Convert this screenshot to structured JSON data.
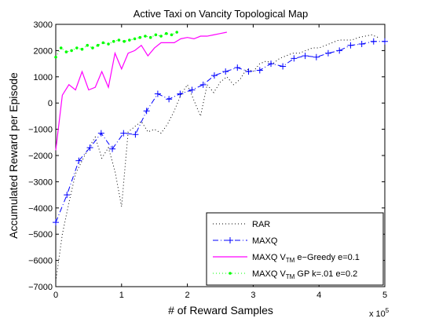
{
  "chart_data": {
    "type": "line",
    "title": "Active Taxi on Vancity Topological Map",
    "xlabel": "# of Reward Samples",
    "ylabel": "Accumulated Reward per Episode",
    "x_multiplier_label": "x 10",
    "x_multiplier_exponent": "5",
    "xlim": [
      0,
      500000
    ],
    "ylim": [
      -7000,
      3000
    ],
    "xticks": [
      0,
      100000,
      200000,
      300000,
      400000,
      500000
    ],
    "xtick_labels": [
      "0",
      "1",
      "2",
      "3",
      "4",
      "5"
    ],
    "yticks": [
      -7000,
      -6000,
      -5000,
      -4000,
      -3000,
      -2000,
      -1000,
      0,
      1000,
      2000,
      3000
    ],
    "ytick_labels": [
      "−7000",
      "−6000",
      "−5000",
      "−4000",
      "−3000",
      "−2000",
      "−1000",
      "0",
      "1000",
      "2000",
      "3000"
    ],
    "grid": false,
    "legend_position": "bottom-right",
    "series": [
      {
        "name": "RAR",
        "color": "#000000",
        "style": "dotted",
        "x": [
          0,
          10000,
          20000,
          30000,
          40000,
          50000,
          60000,
          70000,
          80000,
          90000,
          100000,
          110000,
          120000,
          130000,
          140000,
          150000,
          160000,
          170000,
          180000,
          190000,
          200000,
          210000,
          220000,
          230000,
          240000,
          250000,
          260000,
          270000,
          280000,
          290000,
          300000,
          310000,
          320000,
          330000,
          340000,
          350000,
          360000,
          370000,
          380000,
          390000,
          400000,
          410000,
          420000,
          430000,
          440000,
          450000,
          460000,
          470000,
          480000,
          490000
        ],
        "y": [
          -6800,
          -5000,
          -3800,
          -2700,
          -2200,
          -1700,
          -1300,
          -2100,
          -1700,
          -2600,
          -3950,
          -1100,
          -900,
          -700,
          -1100,
          -1000,
          -1150,
          -800,
          -300,
          300,
          700,
          100,
          -500,
          700,
          400,
          800,
          1000,
          700,
          900,
          1300,
          1200,
          1500,
          1600,
          1500,
          1700,
          1800,
          1900,
          1900,
          2000,
          2100,
          2100,
          2200,
          2300,
          2400,
          2400,
          2400,
          2500,
          2550,
          2600,
          2500
        ]
      },
      {
        "name": "MAXQ",
        "color": "#0000ff",
        "style": "dashdot",
        "marker": "plus",
        "x": [
          0,
          17000,
          35000,
          52000,
          69000,
          86000,
          103000,
          121000,
          138000,
          155000,
          172000,
          189000,
          207000,
          224000,
          241000,
          258000,
          276000,
          293000,
          310000,
          327000,
          345000,
          362000,
          379000,
          396000,
          414000,
          431000,
          448000,
          465000,
          483000,
          500000
        ],
        "y": [
          -4550,
          -3500,
          -2200,
          -1700,
          -1150,
          -1750,
          -1150,
          -1200,
          -300,
          350,
          150,
          350,
          500,
          700,
          1050,
          1200,
          1350,
          1200,
          1250,
          1500,
          1400,
          1700,
          1800,
          1750,
          1900,
          2000,
          2200,
          2250,
          2350,
          2350
        ]
      },
      {
        "name_prefix": "MAXQ V",
        "name_subscript": "TM",
        "name_suffix": " e−Greedy e=0.1",
        "color": "#ff00ff",
        "style": "solid",
        "x": [
          0,
          10000,
          20000,
          30000,
          40000,
          50000,
          60000,
          70000,
          80000,
          90000,
          100000,
          110000,
          120000,
          130000,
          140000,
          150000,
          160000,
          170000,
          180000,
          190000,
          200000,
          210000,
          220000,
          230000,
          240000,
          250000,
          260000
        ],
        "y": [
          -1800,
          300,
          700,
          500,
          1200,
          500,
          600,
          1200,
          600,
          1900,
          1300,
          1900,
          2000,
          2200,
          1800,
          2100,
          2300,
          2300,
          2300,
          2450,
          2500,
          2450,
          2550,
          2550,
          2600,
          2650,
          2700
        ]
      },
      {
        "name_prefix": "MAXQ V",
        "name_subscript": "TM",
        "name_suffix": " GP k=.01 e=0.2",
        "color": "#00ff00",
        "style": "dotted",
        "marker": "dot",
        "x": [
          0,
          8000,
          16000,
          24000,
          32000,
          40000,
          48000,
          56000,
          64000,
          72000,
          80000,
          88000,
          96000,
          104000,
          112000,
          120000,
          128000,
          136000,
          144000,
          152000,
          160000,
          168000,
          176000,
          184000
        ],
        "y": [
          1750,
          2100,
          1950,
          2000,
          2100,
          2050,
          2200,
          2100,
          2200,
          2300,
          2250,
          2350,
          2400,
          2350,
          2400,
          2450,
          2500,
          2550,
          2500,
          2600,
          2550,
          2650,
          2600,
          2700
        ]
      }
    ]
  }
}
